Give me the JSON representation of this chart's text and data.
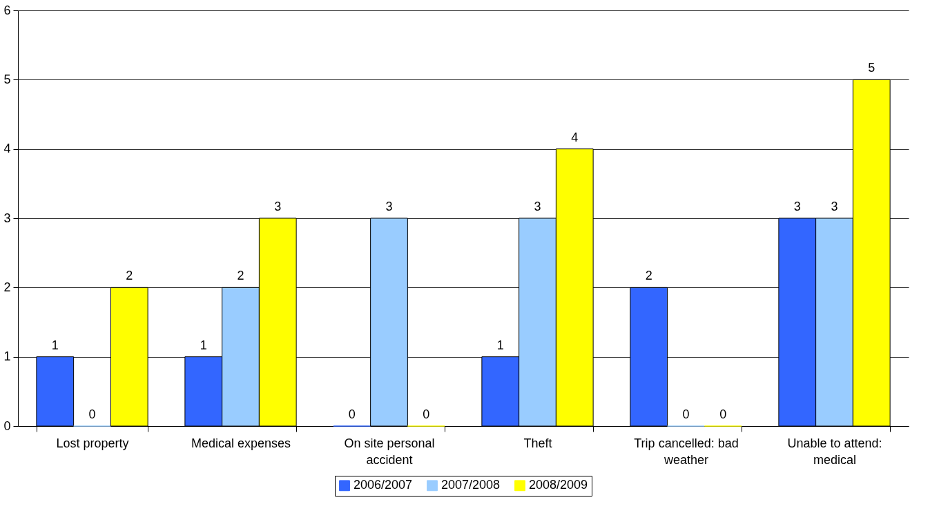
{
  "chart_data": {
    "type": "bar",
    "categories": [
      "Lost property",
      "Medical expenses",
      "On site personal accident",
      "Theft",
      "Trip cancelled: bad weather",
      "Unable to attend: medical"
    ],
    "series": [
      {
        "name": "2006/2007",
        "color": "#3366ff",
        "values": [
          1,
          1,
          0,
          1,
          2,
          3
        ]
      },
      {
        "name": "2007/2008",
        "color": "#99ccff",
        "values": [
          0,
          2,
          3,
          3,
          0,
          3
        ]
      },
      {
        "name": "2008/2009",
        "color": "#ffff00",
        "values": [
          2,
          3,
          0,
          4,
          0,
          5
        ]
      }
    ],
    "ylim": [
      0,
      6
    ],
    "yticks": [
      0,
      1,
      2,
      3,
      4,
      5,
      6
    ],
    "grid": "y",
    "legend": "bottom",
    "data_labels": true
  }
}
